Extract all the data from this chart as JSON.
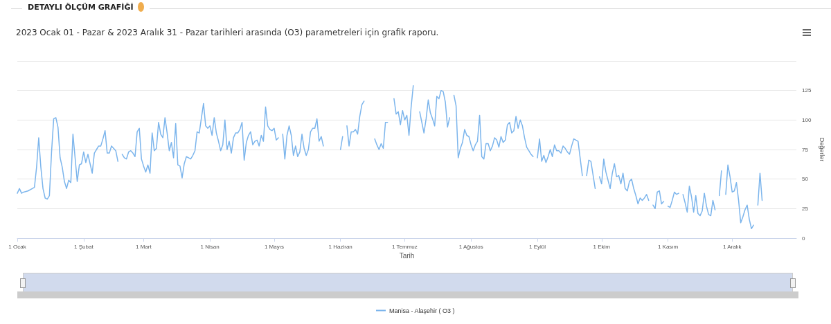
{
  "chart_data": {
    "type": "line",
    "title": "DETAYLI ÖLÇÜM GRAFİĞİ",
    "subtitle": "2023 Ocak 01 - Pazar & 2023 Aralık 31 - Pazar tarihleri arasında (O3) parametreleri için grafik raporu.",
    "xlabel": "Tarih",
    "ylabel": "Değerler",
    "x": [
      "2023-01-01",
      "2023-01-02",
      "2023-01-03",
      "2023-01-04",
      "2023-01-06",
      "2023-01-08",
      "2023-01-09",
      "2023-01-10",
      "2023-01-11",
      "2023-01-12",
      "2023-01-13",
      "2023-01-14",
      "2023-01-15",
      "2023-01-16",
      "2023-01-17",
      "2023-01-18",
      "2023-01-19",
      "2023-01-20",
      "2023-01-21",
      "2023-01-22",
      "2023-01-23",
      "2023-01-24",
      "2023-01-25",
      "2023-01-26",
      "2023-01-27",
      "2023-01-28",
      "2023-01-29",
      "2023-01-30",
      "2023-01-31",
      "2023-02-01",
      "2023-02-02",
      "2023-02-03",
      "2023-02-04",
      "2023-02-05",
      "2023-02-06",
      "2023-02-07",
      "2023-02-08",
      "2023-02-09",
      "2023-02-10",
      "2023-02-11",
      "2023-02-12",
      "2023-02-13",
      "2023-02-14",
      "2023-02-15",
      "2023-02-16",
      "2023-02-17",
      "2023-02-18",
      "2023-02-19",
      "2023-02-20",
      "2023-02-21",
      "2023-02-22",
      "2023-02-23",
      "2023-02-24",
      "2023-02-25",
      "2023-02-26",
      "2023-02-27",
      "2023-02-28",
      "2023-03-01",
      "2023-03-02",
      "2023-03-03",
      "2023-03-04",
      "2023-03-05",
      "2023-03-06",
      "2023-03-07",
      "2023-03-08",
      "2023-03-09",
      "2023-03-10",
      "2023-03-11",
      "2023-03-12",
      "2023-03-13",
      "2023-03-14",
      "2023-03-15",
      "2023-03-16",
      "2023-03-17",
      "2023-03-18",
      "2023-03-19",
      "2023-03-20",
      "2023-03-21",
      "2023-03-22",
      "2023-03-23",
      "2023-03-24",
      "2023-03-25",
      "2023-03-26",
      "2023-03-27",
      "2023-03-29",
      "2023-03-30",
      "2023-03-31",
      "2023-04-01",
      "2023-04-02",
      "2023-04-03",
      "2023-04-04",
      "2023-04-05",
      "2023-04-06",
      "2023-04-07",
      "2023-04-08",
      "2023-04-09",
      "2023-04-10",
      "2023-04-11",
      "2023-04-12",
      "2023-04-13",
      "2023-04-14",
      "2023-04-15",
      "2023-04-16",
      "2023-04-17",
      "2023-04-18",
      "2023-04-19",
      "2023-04-20",
      "2023-04-21",
      "2023-04-22",
      "2023-04-23",
      "2023-04-24",
      "2023-04-25",
      "2023-04-26",
      "2023-04-27",
      "2023-04-28",
      "2023-04-29",
      "2023-04-30",
      "2023-05-01",
      "2023-05-02",
      "2023-05-03",
      "2023-05-04",
      "2023-05-05",
      "2023-05-06",
      "2023-05-07",
      "2023-05-08",
      "2023-05-09",
      "2023-05-10",
      "2023-05-11",
      "2023-05-12",
      "2023-05-13",
      "2023-05-14",
      "2023-05-15",
      "2023-05-16",
      "2023-05-17",
      "2023-05-18",
      "2023-05-19",
      "2023-05-20",
      "2023-05-21",
      "2023-05-22",
      "2023-05-23",
      "2023-05-24",
      "2023-05-28",
      "2023-06-01",
      "2023-06-02",
      "2023-06-03",
      "2023-06-04",
      "2023-06-05",
      "2023-06-06",
      "2023-06-07",
      "2023-06-08",
      "2023-06-09",
      "2023-06-10",
      "2023-06-11",
      "2023-06-12",
      "2023-06-14",
      "2023-06-17",
      "2023-06-18",
      "2023-06-19",
      "2023-06-20",
      "2023-06-21",
      "2023-06-22",
      "2023-06-23",
      "2023-06-24",
      "2023-06-26",
      "2023-06-27",
      "2023-06-28",
      "2023-06-29",
      "2023-06-30",
      "2023-07-01",
      "2023-07-02",
      "2023-07-03",
      "2023-07-04",
      "2023-07-05",
      "2023-07-06",
      "2023-07-08",
      "2023-07-09",
      "2023-07-10",
      "2023-07-11",
      "2023-07-12",
      "2023-07-13",
      "2023-07-14",
      "2023-07-15",
      "2023-07-16",
      "2023-07-17",
      "2023-07-18",
      "2023-07-19",
      "2023-07-20",
      "2023-07-21",
      "2023-07-22",
      "2023-07-23",
      "2023-07-24",
      "2023-07-25",
      "2023-07-26",
      "2023-07-27",
      "2023-07-28",
      "2023-07-29",
      "2023-07-30",
      "2023-07-31",
      "2023-08-01",
      "2023-08-02",
      "2023-08-03",
      "2023-08-04",
      "2023-08-05",
      "2023-08-06",
      "2023-08-07",
      "2023-08-08",
      "2023-08-09",
      "2023-08-10",
      "2023-08-11",
      "2023-08-12",
      "2023-08-13",
      "2023-08-14",
      "2023-08-15",
      "2023-08-16",
      "2023-08-17",
      "2023-08-18",
      "2023-08-19",
      "2023-08-20",
      "2023-08-21",
      "2023-08-22",
      "2023-08-23",
      "2023-08-24",
      "2023-08-25",
      "2023-08-26",
      "2023-08-27",
      "2023-08-28",
      "2023-08-29",
      "2023-08-30",
      "2023-08-31",
      "2023-09-01",
      "2023-09-02",
      "2023-09-03",
      "2023-09-04",
      "2023-09-05",
      "2023-09-06",
      "2023-09-07",
      "2023-09-08",
      "2023-09-09",
      "2023-09-10",
      "2023-09-11",
      "2023-09-12",
      "2023-09-13",
      "2023-09-14",
      "2023-09-15",
      "2023-09-16",
      "2023-09-17",
      "2023-09-18",
      "2023-09-19",
      "2023-09-20",
      "2023-09-22",
      "2023-09-23",
      "2023-09-24",
      "2023-09-25",
      "2023-09-26",
      "2023-09-28",
      "2023-09-29",
      "2023-09-30",
      "2023-10-01",
      "2023-10-02",
      "2023-10-03",
      "2023-10-05",
      "2023-10-06",
      "2023-10-07",
      "2023-10-08",
      "2023-10-09",
      "2023-10-10",
      "2023-10-11",
      "2023-10-12",
      "2023-10-13",
      "2023-10-14",
      "2023-10-15",
      "2023-10-16",
      "2023-10-17",
      "2023-10-18",
      "2023-10-19",
      "2023-10-20",
      "2023-10-21",
      "2023-10-22",
      "2023-10-23",
      "2023-10-24",
      "2023-10-25",
      "2023-10-26",
      "2023-10-27",
      "2023-10-28",
      "2023-10-29",
      "2023-10-30",
      "2023-10-31",
      "2023-11-01",
      "2023-11-02",
      "2023-11-03",
      "2023-11-04",
      "2023-11-05",
      "2023-11-06",
      "2023-11-07",
      "2023-11-08",
      "2023-11-09",
      "2023-11-10",
      "2023-11-11",
      "2023-11-12",
      "2023-11-13",
      "2023-11-14",
      "2023-11-15",
      "2023-11-16",
      "2023-11-17",
      "2023-11-18",
      "2023-11-19",
      "2023-11-20",
      "2023-11-21",
      "2023-11-22",
      "2023-11-23",
      "2023-11-24",
      "2023-11-25",
      "2023-11-26",
      "2023-11-27",
      "2023-11-28",
      "2023-11-29",
      "2023-11-30",
      "2023-12-01",
      "2023-12-02",
      "2023-12-03",
      "2023-12-04",
      "2023-12-05",
      "2023-12-06",
      "2023-12-07",
      "2023-12-08",
      "2023-12-09",
      "2023-12-10",
      "2023-12-11",
      "2023-12-12",
      "2023-12-13",
      "2023-12-14",
      "2023-12-15"
    ],
    "series": [
      {
        "name": "Manisa - Alaşehir ( O3 )",
        "color": "#7cb5ec",
        "values": [
          38,
          42,
          38,
          39,
          40,
          42,
          43,
          60,
          85,
          60,
          42,
          34,
          33,
          36,
          73,
          101,
          102,
          94,
          68,
          60,
          48,
          42,
          49,
          47,
          88,
          68,
          48,
          62,
          63,
          73,
          64,
          71,
          63,
          55,
          72,
          75,
          78,
          78,
          84,
          91,
          72,
          72,
          78,
          76,
          74,
          65,
          null,
          71,
          68,
          67,
          73,
          74,
          72,
          69,
          90,
          93,
          67,
          61,
          56,
          62,
          55,
          89,
          74,
          76,
          98,
          88,
          85,
          102,
          89,
          74,
          81,
          68,
          97,
          62,
          61,
          51,
          63,
          69,
          68,
          67,
          70,
          74,
          90,
          89,
          114,
          95,
          93,
          95,
          87,
          102,
          89,
          82,
          74,
          79,
          100,
          75,
          82,
          72,
          85,
          89,
          89,
          92,
          98,
          66,
          81,
          87,
          90,
          79,
          82,
          83,
          78,
          87,
          82,
          111,
          95,
          92,
          91,
          93,
          83,
          85,
          null,
          88,
          67,
          87,
          95,
          87,
          70,
          78,
          69,
          73,
          88,
          76,
          70,
          75,
          90,
          93,
          93,
          101,
          82,
          86,
          78,
          null,
          75,
          86,
          null,
          95,
          78,
          90,
          90,
          92,
          88,
          103,
          113,
          116,
          null,
          84,
          79,
          75,
          80,
          76,
          98,
          98,
          null,
          118,
          105,
          107,
          96,
          108,
          100,
          104,
          87,
          111,
          129,
          null,
          107,
          98,
          89,
          101,
          117,
          106,
          101,
          95,
          120,
          118,
          125,
          124,
          115,
          94,
          102,
          null,
          121,
          112,
          68,
          76,
          81,
          92,
          87,
          86,
          79,
          74,
          79,
          82,
          104,
          69,
          67,
          80,
          80,
          74,
          78,
          85,
          83,
          77,
          86,
          81,
          83,
          96,
          98,
          89,
          91,
          103,
          93,
          100,
          95,
          85,
          77,
          74,
          71,
          69,
          null,
          68,
          84,
          65,
          70,
          64,
          69,
          75,
          69,
          79,
          74,
          74,
          72,
          78,
          76,
          73,
          71,
          78,
          84,
          83,
          82,
          53,
          null,
          53,
          66,
          65,
          42,
          null,
          52,
          46,
          67,
          56,
          42,
          55,
          63,
          52,
          53,
          46,
          55,
          42,
          40,
          48,
          50,
          42,
          36,
          29,
          34,
          32,
          34,
          37,
          32,
          null,
          28,
          25,
          39,
          40,
          29,
          31,
          null,
          27,
          26,
          32,
          39,
          37,
          38,
          null,
          37,
          30,
          22,
          44,
          35,
          22,
          36,
          21,
          19,
          23,
          38,
          27,
          20,
          19,
          32,
          24,
          null,
          36,
          57,
          null,
          37,
          62,
          52,
          39,
          40,
          47,
          32,
          13,
          18,
          24,
          28,
          16,
          8,
          11,
          null,
          28,
          55,
          32
        ]
      }
    ],
    "xlim": [
      "2023-01-01",
      "2023-12-31"
    ],
    "xticks": [
      {
        "value": "2023-01-01",
        "label": "1 Ocak"
      },
      {
        "value": "2023-02-01",
        "label": "1 Şubat"
      },
      {
        "value": "2023-03-01",
        "label": "1 Mart"
      },
      {
        "value": "2023-04-01",
        "label": "1 Nisan"
      },
      {
        "value": "2023-05-01",
        "label": "1 Mayıs"
      },
      {
        "value": "2023-06-01",
        "label": "1 Haziran"
      },
      {
        "value": "2023-07-01",
        "label": "1 Temmuz"
      },
      {
        "value": "2023-08-01",
        "label": "1 Ağustos"
      },
      {
        "value": "2023-09-01",
        "label": "1 Eylül"
      },
      {
        "value": "2023-10-01",
        "label": "1 Ekim"
      },
      {
        "value": "2023-11-01",
        "label": "1 Kasım"
      },
      {
        "value": "2023-12-01",
        "label": "1 Aralık"
      }
    ],
    "ylim": [
      0,
      150
    ],
    "yticks": [
      0,
      25,
      50,
      75,
      100,
      125,
      {
        "value": 150,
        "label": null
      }
    ],
    "grid": "y",
    "legend": "bottom",
    "marker": "none",
    "line_style": "solid"
  }
}
